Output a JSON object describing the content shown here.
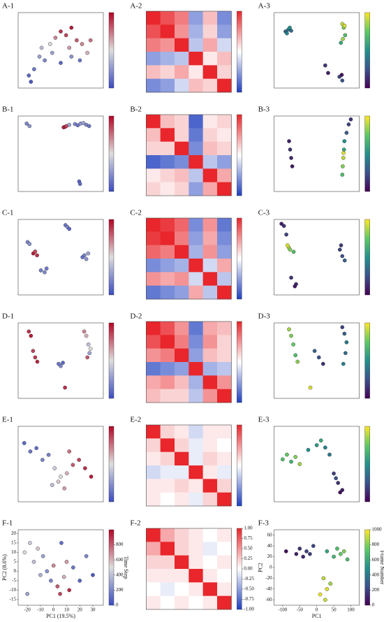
{
  "chart_data": [
    {
      "type": "scatter",
      "title": "A-1",
      "xlim": [
        -40,
        40
      ],
      "ylim": [
        -30,
        30
      ],
      "clim": [
        0,
        1000
      ],
      "colormap": [
        "#3b4cc0",
        "#dddddd",
        "#b40426"
      ],
      "x": [
        -30,
        -25,
        -20,
        -10,
        -5,
        0,
        5,
        10,
        15,
        20,
        25,
        -15,
        0,
        10,
        -28,
        -18,
        8,
        28,
        -8,
        18
      ],
      "y": [
        -20,
        -15,
        -5,
        5,
        10,
        15,
        12,
        18,
        8,
        5,
        -2,
        -8,
        -10,
        -5,
        -25,
        2,
        2,
        8,
        -2,
        -8
      ],
      "c": [
        100,
        150,
        300,
        500,
        700,
        900,
        850,
        950,
        800,
        700,
        600,
        200,
        100,
        250,
        50,
        400,
        650,
        750,
        300,
        150
      ]
    },
    {
      "type": "heatmap",
      "title": "A-2",
      "clim": [
        -1,
        1
      ],
      "colormap": [
        "#1f3fbf",
        "#ffffff",
        "#e8262b"
      ],
      "matrix": [
        [
          1,
          0.8,
          0.6,
          -0.5,
          0.3,
          -0.6
        ],
        [
          0.8,
          1,
          0.5,
          -0.4,
          0.2,
          -0.5
        ],
        [
          0.6,
          0.5,
          1,
          -0.3,
          0.4,
          -0.2
        ],
        [
          -0.5,
          -0.4,
          -0.3,
          1,
          0.1,
          0.3
        ],
        [
          0.3,
          0.2,
          0.4,
          0.1,
          1,
          0.2
        ],
        [
          -0.6,
          -0.5,
          -0.2,
          0.3,
          0.2,
          1
        ]
      ]
    },
    {
      "type": "scatter",
      "title": "A-3",
      "xlim": [
        -150,
        150
      ],
      "ylim": [
        -100,
        100
      ],
      "clim": [
        0,
        1000
      ],
      "colormap": [
        "#440154",
        "#3b528b",
        "#21918c",
        "#5ec962",
        "#fde725"
      ],
      "x": [
        -110,
        -100,
        -95,
        -90,
        -105,
        90,
        95,
        100,
        85,
        92,
        98,
        30,
        40,
        80,
        90,
        88
      ],
      "y": [
        50,
        55,
        60,
        52,
        45,
        70,
        60,
        40,
        20,
        30,
        65,
        -40,
        -60,
        -70,
        -80,
        -65
      ],
      "c": [
        300,
        400,
        500,
        350,
        450,
        900,
        800,
        700,
        600,
        850,
        950,
        150,
        100,
        200,
        250,
        50
      ]
    },
    {
      "type": "scatter",
      "title": "B-1",
      "xlim": [
        -200,
        100
      ],
      "ylim": [
        -260,
        40
      ],
      "clim": [
        0,
        1000
      ],
      "colormap": [
        "#3b4cc0",
        "#dddddd",
        "#b40426"
      ],
      "x": [
        -170,
        -160,
        -40,
        -35,
        -30,
        -20,
        0,
        10,
        20,
        30,
        40,
        50,
        15,
        18
      ],
      "y": [
        10,
        0,
        -5,
        -3,
        0,
        5,
        8,
        3,
        10,
        12,
        5,
        0,
        -220,
        -230
      ],
      "c": [
        200,
        250,
        900,
        950,
        850,
        300,
        200,
        150,
        250,
        300,
        200,
        150,
        100,
        120
      ]
    },
    {
      "type": "heatmap",
      "title": "B-2",
      "clim": [
        -1,
        1
      ],
      "colormap": [
        "#1f3fbf",
        "#ffffff",
        "#e8262b"
      ],
      "matrix": [
        [
          1,
          0.3,
          0.2,
          -0.8,
          0.1,
          0.2
        ],
        [
          0.3,
          1,
          0.2,
          -0.7,
          0.2,
          0.1
        ],
        [
          0.2,
          0.2,
          1,
          -0.6,
          0.3,
          0.2
        ],
        [
          -0.8,
          -0.7,
          -0.6,
          1,
          -0.3,
          -0.5
        ],
        [
          0.1,
          0.2,
          0.3,
          -0.3,
          1,
          0.4
        ],
        [
          0.2,
          0.1,
          0.2,
          -0.5,
          0.4,
          1
        ]
      ]
    },
    {
      "type": "scatter",
      "title": "B-3",
      "xlim": [
        -300,
        100
      ],
      "ylim": [
        -250,
        200
      ],
      "clim": [
        0,
        1000
      ],
      "colormap": [
        "#440154",
        "#3b528b",
        "#21918c",
        "#5ec962",
        "#fde725"
      ],
      "x": [
        -230,
        -225,
        -220,
        -215,
        20,
        22,
        25,
        28,
        30,
        40,
        50,
        60,
        26
      ],
      "y": [
        50,
        0,
        -50,
        -100,
        -150,
        -100,
        -50,
        0,
        50,
        100,
        150,
        180,
        -20
      ],
      "c": [
        100,
        150,
        120,
        80,
        700,
        800,
        900,
        600,
        500,
        300,
        200,
        150,
        950
      ]
    },
    {
      "type": "scatter",
      "title": "C-1",
      "xlim": [
        -200,
        250
      ],
      "ylim": [
        -250,
        150
      ],
      "clim": [
        0,
        1000
      ],
      "colormap": [
        "#3b4cc0",
        "#dddddd",
        "#b40426"
      ],
      "x": [
        -150,
        -140,
        -120,
        -100,
        -110,
        50,
        60,
        70,
        -80,
        -60,
        -50,
        150,
        160,
        170,
        140
      ],
      "y": [
        30,
        20,
        -30,
        -40,
        -20,
        120,
        110,
        100,
        -120,
        -130,
        -110,
        -40,
        -60,
        -30,
        -50
      ],
      "c": [
        200,
        250,
        950,
        900,
        850,
        150,
        200,
        100,
        180,
        220,
        150,
        200,
        250,
        300,
        120
      ]
    },
    {
      "type": "heatmap",
      "title": "C-2",
      "clim": [
        -1,
        1
      ],
      "colormap": [
        "#1f3fbf",
        "#ffffff",
        "#e8262b"
      ],
      "matrix": [
        [
          1,
          0.9,
          0.7,
          -0.6,
          0.5,
          -0.7
        ],
        [
          0.9,
          1,
          0.6,
          -0.5,
          0.4,
          -0.6
        ],
        [
          0.7,
          0.6,
          1,
          -0.4,
          0.5,
          -0.5
        ],
        [
          -0.6,
          -0.5,
          -0.4,
          1,
          -0.2,
          0.4
        ],
        [
          0.5,
          0.4,
          0.5,
          -0.2,
          1,
          -0.3
        ],
        [
          -0.7,
          -0.6,
          -0.5,
          0.4,
          -0.3,
          1
        ]
      ]
    },
    {
      "type": "scatter",
      "title": "C-3",
      "xlim": [
        -150,
        200
      ],
      "ylim": [
        -200,
        150
      ],
      "clim": [
        0,
        1000
      ],
      "colormap": [
        "#440154",
        "#3b528b",
        "#21918c",
        "#5ec962",
        "#fde725"
      ],
      "x": [
        -120,
        -110,
        -100,
        -90,
        -95,
        -85,
        -70,
        -80,
        120,
        130,
        140,
        125,
        -60,
        -65
      ],
      "y": [
        130,
        120,
        80,
        20,
        30,
        10,
        0,
        -120,
        10,
        -20,
        -40,
        30,
        -150,
        -160
      ],
      "c": [
        100,
        150,
        200,
        900,
        950,
        800,
        700,
        150,
        200,
        250,
        300,
        180,
        120,
        80
      ]
    },
    {
      "type": "scatter",
      "title": "D-1",
      "xlim": [
        -250,
        150
      ],
      "ylim": [
        -250,
        100
      ],
      "clim": [
        0,
        1000
      ],
      "colormap": [
        "#3b4cc0",
        "#dddddd",
        "#b40426"
      ],
      "x": [
        -200,
        -190,
        -180,
        -170,
        -160,
        -60,
        -50,
        -40,
        60,
        70,
        80,
        90,
        85,
        75,
        -30
      ],
      "y": [
        60,
        40,
        -30,
        -60,
        -80,
        -90,
        -100,
        -85,
        60,
        40,
        0,
        -20,
        -40,
        -60,
        -200
      ],
      "c": [
        900,
        950,
        850,
        880,
        920,
        150,
        200,
        100,
        700,
        600,
        400,
        500,
        300,
        800,
        900
      ]
    },
    {
      "type": "heatmap",
      "title": "D-2",
      "clim": [
        -1,
        1
      ],
      "colormap": [
        "#1f3fbf",
        "#ffffff",
        "#e8262b"
      ],
      "matrix": [
        [
          1,
          0.8,
          0.5,
          -0.7,
          0.4,
          0.3
        ],
        [
          0.8,
          1,
          0.6,
          -0.6,
          0.5,
          0.2
        ],
        [
          0.5,
          0.6,
          1,
          -0.5,
          0.3,
          0.2
        ],
        [
          -0.7,
          -0.6,
          -0.5,
          1,
          -0.4,
          -0.3
        ],
        [
          0.4,
          0.5,
          0.3,
          -0.4,
          1,
          0.5
        ],
        [
          0.3,
          0.2,
          0.2,
          -0.3,
          0.5,
          1
        ]
      ]
    },
    {
      "type": "scatter",
      "title": "D-3",
      "xlim": [
        -250,
        150
      ],
      "ylim": [
        -250,
        100
      ],
      "clim": [
        0,
        1000
      ],
      "colormap": [
        "#440154",
        "#3b528b",
        "#21918c",
        "#5ec962",
        "#fde725"
      ],
      "x": [
        -180,
        -170,
        -160,
        -150,
        -140,
        -60,
        -40,
        -20,
        70,
        80,
        90,
        85,
        75,
        -80
      ],
      "y": [
        70,
        40,
        0,
        -50,
        -80,
        -30,
        -60,
        -90,
        80,
        50,
        10,
        -40,
        -90,
        -200
      ],
      "c": [
        850,
        800,
        750,
        700,
        820,
        300,
        250,
        150,
        200,
        300,
        400,
        350,
        450,
        950
      ]
    },
    {
      "type": "scatter",
      "title": "E-1",
      "xlim": [
        -30,
        40
      ],
      "ylim": [
        -20,
        25
      ],
      "clim": [
        0,
        1000
      ],
      "colormap": [
        "#3b4cc0",
        "#dddddd",
        "#b40426"
      ],
      "x": [
        -25,
        -20,
        -15,
        -10,
        -5,
        0,
        5,
        10,
        15,
        20,
        25,
        30,
        -2,
        3,
        8,
        12
      ],
      "y": [
        15,
        10,
        12,
        5,
        8,
        0,
        -5,
        -3,
        2,
        5,
        0,
        -5,
        -10,
        -8,
        -12,
        10
      ],
      "c": [
        100,
        150,
        120,
        200,
        180,
        450,
        500,
        600,
        800,
        850,
        900,
        950,
        400,
        550,
        650,
        750
      ]
    },
    {
      "type": "heatmap",
      "title": "E-2",
      "clim": [
        -1,
        1
      ],
      "colormap": [
        "#1f3fbf",
        "#ffffff",
        "#e8262b"
      ],
      "matrix": [
        [
          1,
          0.2,
          0.1,
          -0.2,
          0.1,
          0.1
        ],
        [
          0.2,
          1,
          0.2,
          -0.1,
          0.1,
          0.0
        ],
        [
          0.1,
          0.2,
          1,
          -0.1,
          0.2,
          0.1
        ],
        [
          -0.2,
          -0.1,
          -0.1,
          1,
          0.1,
          -0.1
        ],
        [
          0.1,
          0.1,
          0.2,
          0.1,
          1,
          0.2
        ],
        [
          0.1,
          0.0,
          0.1,
          -0.1,
          0.2,
          1
        ]
      ]
    },
    {
      "type": "scatter",
      "title": "E-3",
      "xlim": [
        -100,
        100
      ],
      "ylim": [
        -80,
        80
      ],
      "clim": [
        0,
        1000
      ],
      "colormap": [
        "#440154",
        "#3b528b",
        "#21918c",
        "#5ec962",
        "#fde725"
      ],
      "x": [
        -80,
        -70,
        -60,
        -50,
        -40,
        -20,
        0,
        10,
        20,
        30,
        40,
        50,
        60,
        45,
        55
      ],
      "y": [
        10,
        20,
        5,
        15,
        0,
        30,
        40,
        50,
        35,
        20,
        -20,
        -40,
        -55,
        -30,
        -60
      ],
      "c": [
        700,
        750,
        650,
        800,
        850,
        500,
        550,
        600,
        450,
        400,
        200,
        150,
        100,
        250,
        50
      ]
    },
    {
      "type": "scatter",
      "title": "F-1",
      "xlabel": "PC1 (19.5%)",
      "ylabel": "PC2 (8.6%)",
      "colorbar_label": "Time Step",
      "xlim": [
        -27,
        38
      ],
      "ylim": [
        -18,
        22
      ],
      "xticks": [
        -20,
        -10,
        0,
        10,
        20,
        30
      ],
      "yticks": [
        -15,
        -10,
        -5,
        0,
        5,
        10,
        15,
        20
      ],
      "clim": [
        0,
        1000
      ],
      "cticks": [
        0,
        200,
        400,
        600,
        800
      ],
      "colormap": [
        "#3b4cc0",
        "#dddddd",
        "#b40426"
      ],
      "x": [
        -22,
        -18,
        -15,
        -12,
        -10,
        -8,
        -5,
        -2,
        0,
        3,
        5,
        8,
        10,
        12,
        15,
        20,
        25,
        30,
        -20,
        6
      ],
      "y": [
        10,
        15,
        5,
        12,
        -2,
        8,
        0,
        -5,
        3,
        -8,
        -12,
        -3,
        5,
        -10,
        2,
        -5,
        8,
        -2,
        -12,
        15
      ],
      "c": [
        500,
        450,
        400,
        550,
        350,
        300,
        250,
        200,
        700,
        800,
        850,
        600,
        650,
        900,
        150,
        100,
        200,
        50,
        300,
        120
      ]
    },
    {
      "type": "heatmap",
      "title": "F-2",
      "clim": [
        -1,
        1
      ],
      "colormap": [
        "#1f3fbf",
        "#ffffff",
        "#e8262b"
      ],
      "cticks": [
        {
          "value": 1,
          "label": "1.00"
        },
        {
          "value": 0.75,
          "label": "0.75"
        },
        {
          "value": 0.5,
          "label": "0.50"
        },
        {
          "value": 0.25,
          "label": "0.25"
        },
        {
          "value": 0,
          "label": "0.00"
        },
        {
          "value": -0.25,
          "label": "-0.25"
        },
        {
          "value": -0.5,
          "label": "-0.50"
        },
        {
          "value": -0.75,
          "label": "-0.75"
        },
        {
          "value": -1,
          "label": "-1.00"
        }
      ],
      "matrix": [
        [
          1,
          0.4,
          0.2,
          0.1,
          0.0,
          0.1
        ],
        [
          0.4,
          1,
          0.2,
          0.1,
          -0.1,
          0.0
        ],
        [
          0.2,
          0.2,
          1,
          0.1,
          0.0,
          0.1
        ],
        [
          0.1,
          0.1,
          0.1,
          1,
          0.1,
          0.0
        ],
        [
          0.0,
          -0.1,
          0.0,
          0.1,
          1,
          0.1
        ],
        [
          0.1,
          0.0,
          0.1,
          0.0,
          0.1,
          1
        ]
      ]
    },
    {
      "type": "scatter",
      "title": "F-3",
      "xlabel": "PC1",
      "ylabel": "PC2",
      "colorbar_label": "Frame Number",
      "xlim": [
        -125,
        125
      ],
      "ylim": [
        -70,
        70
      ],
      "xticks": [
        -100,
        -50,
        0,
        50,
        100
      ],
      "yticks": [
        -60,
        -40,
        -20,
        0,
        20,
        40,
        60
      ],
      "clim": [
        0,
        1000
      ],
      "cticks": [
        0,
        200,
        400,
        600,
        800,
        1000
      ],
      "colormap": [
        "#440154",
        "#3b528b",
        "#21918c",
        "#5ec962",
        "#fde725"
      ],
      "x": [
        -90,
        -60,
        -50,
        -40,
        -30,
        -20,
        -10,
        30,
        50,
        60,
        70,
        80,
        90,
        20,
        30,
        40,
        10,
        25
      ],
      "y": [
        30,
        25,
        35,
        20,
        30,
        25,
        40,
        30,
        20,
        35,
        25,
        30,
        15,
        -20,
        -40,
        -30,
        -50,
        -60
      ],
      "c": [
        50,
        100,
        150,
        120,
        200,
        180,
        220,
        600,
        650,
        700,
        750,
        800,
        680,
        900,
        950,
        850,
        980,
        920
      ]
    }
  ]
}
